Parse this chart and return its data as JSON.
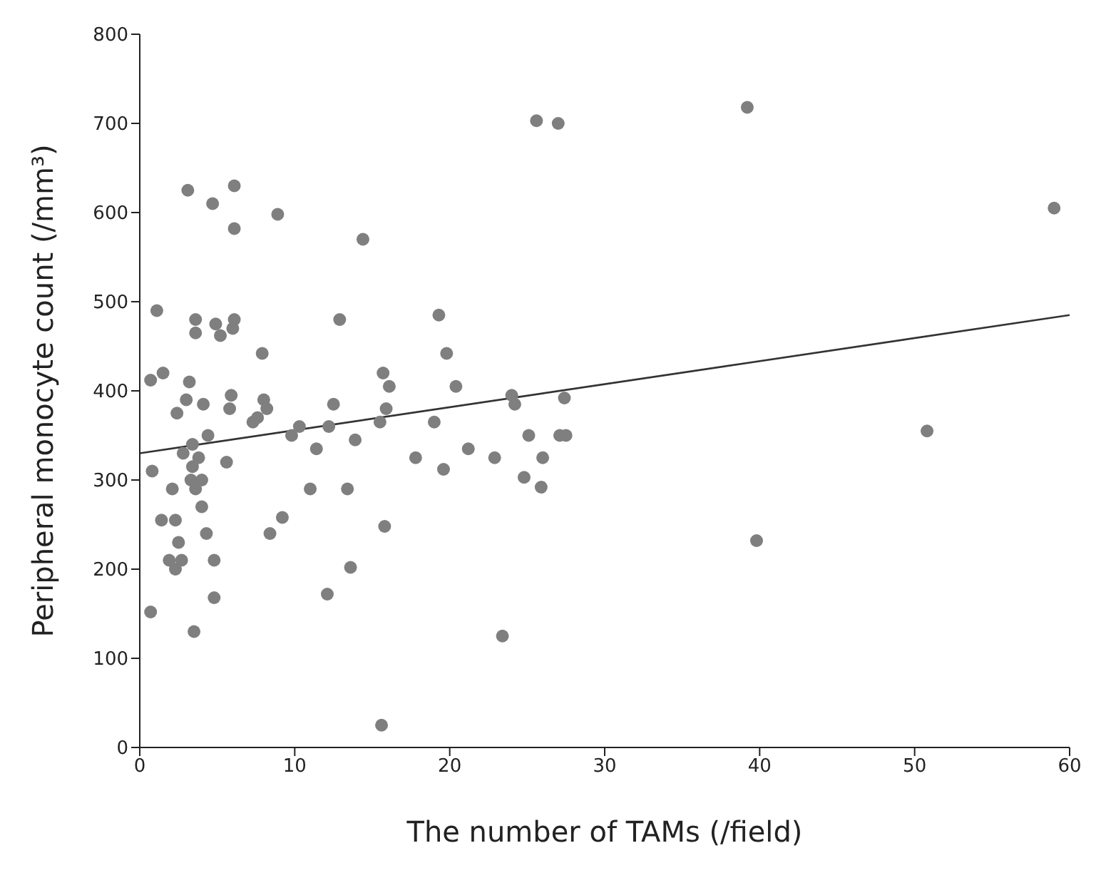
{
  "chart_data": {
    "type": "scatter",
    "xlabel": "The number of TAMs (/field)",
    "ylabel": "Peripheral monocyte count (/mm³)",
    "xlim": [
      0,
      60
    ],
    "xticks": [
      0,
      10,
      20,
      30,
      40,
      50,
      60
    ],
    "ylim": [
      0,
      800
    ],
    "yticks": [
      0,
      100,
      200,
      300,
      400,
      500,
      600,
      700,
      800
    ],
    "grid": false,
    "legend": false,
    "marker": "circle",
    "series": [
      {
        "color": "#7f7f7f",
        "x": [
          0.7,
          0.8,
          0.7,
          1.1,
          1.4,
          1.5,
          1.9,
          2.1,
          2.3,
          2.3,
          2.4,
          2.5,
          2.7,
          2.8,
          3,
          3.1,
          3.2,
          3.3,
          3.4,
          3.4,
          3.5,
          3.6,
          3.6,
          3.6,
          3.8,
          4,
          4,
          4.1,
          4.3,
          4.4,
          4.7,
          4.8,
          4.8,
          4.9,
          5.2,
          5.6,
          5.8,
          5.9,
          6,
          6.1,
          6.1,
          6.1,
          7.3,
          7.6,
          7.9,
          8,
          8.2,
          8.4,
          8.9,
          9.2,
          9.8,
          10.3,
          11,
          11.4,
          12.1,
          12.2,
          12.5,
          12.9,
          13.4,
          13.6,
          13.9,
          14.4,
          15.5,
          15.6,
          15.7,
          15.8,
          15.9,
          16.1,
          17.8,
          19,
          19.3,
          19.6,
          19.8,
          20.4,
          21.2,
          22.9,
          23.4,
          24,
          24.2,
          24.8,
          25.1,
          25.6,
          25.9,
          26,
          27,
          27.1,
          27.4,
          27.5,
          39.2,
          39.8,
          50.8,
          59
        ],
        "values": [
          152,
          310,
          412,
          490,
          255,
          420,
          210,
          290,
          200,
          255,
          375,
          230,
          210,
          330,
          390,
          625,
          410,
          300,
          340,
          315,
          130,
          290,
          480,
          465,
          325,
          300,
          270,
          385,
          240,
          350,
          610,
          210,
          168,
          475,
          462,
          320,
          380,
          395,
          470,
          480,
          630,
          582,
          365,
          370,
          442,
          390,
          380,
          240,
          598,
          258,
          350,
          360,
          290,
          335,
          172,
          360,
          385,
          480,
          290,
          202,
          345,
          570,
          365,
          25,
          420,
          248,
          380,
          405,
          325,
          365,
          485,
          312,
          442,
          405,
          335,
          325,
          125,
          395,
          385,
          303,
          350,
          703,
          292,
          325,
          700,
          350,
          392,
          350,
          718,
          232,
          355,
          605
        ]
      },
      {
        "type": "line",
        "color": "#333333",
        "marker": "none",
        "line_style": "solid",
        "x": [
          0,
          60
        ],
        "values": [
          330,
          485
        ]
      }
    ]
  }
}
